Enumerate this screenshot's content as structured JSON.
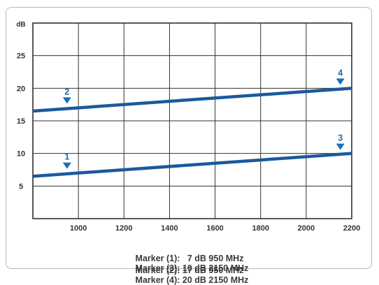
{
  "chart_data": {
    "type": "line",
    "ylabel": "dB",
    "xlabel": "",
    "xlim": [
      800,
      2200
    ],
    "ylim": [
      0,
      30
    ],
    "xticks": [
      1000,
      1200,
      1400,
      1600,
      1800,
      2000,
      2200
    ],
    "yticks": [
      5,
      10,
      15,
      20,
      25
    ],
    "grid": true,
    "color": "#1a5a9c",
    "marker_color": "#1a6fb5",
    "series": [
      {
        "points": [
          [
            800,
            6.5
          ],
          [
            2200,
            10.0
          ]
        ]
      },
      {
        "points": [
          [
            800,
            16.5
          ],
          [
            2200,
            20.0
          ]
        ]
      }
    ],
    "markers": [
      {
        "label": "1",
        "x": 950,
        "y": 8.6
      },
      {
        "label": "2",
        "x": 950,
        "y": 18.6
      },
      {
        "label": "3",
        "x": 2150,
        "y": 11.5
      },
      {
        "label": "4",
        "x": 2150,
        "y": 21.5
      }
    ]
  },
  "caption": {
    "line1_left": "Marker (1):   7 dB 950 MHz",
    "line1_right": "Marker (3): 10 dB 2150 MHz",
    "line2_left": "Marker (2): 17 dB 950 MHz",
    "line2_right": "Marker (4): 20 dB 2150 MHz"
  }
}
